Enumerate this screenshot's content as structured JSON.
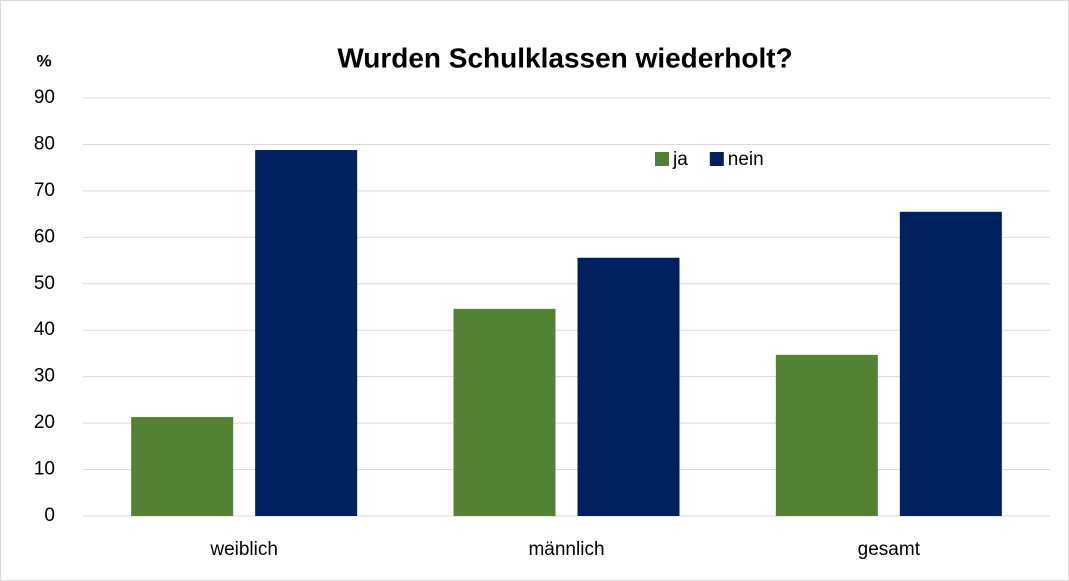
{
  "chart_data": {
    "type": "bar",
    "title": "Wurden Schulklassen wiederholt?",
    "y_label": "%",
    "categories": [
      "weiblich",
      "männlich",
      "gesamt"
    ],
    "series": [
      {
        "name": "ja",
        "color": "#548235",
        "values": [
          21.3,
          44.6,
          34.7
        ]
      },
      {
        "name": "nein",
        "color": "#002060",
        "values": [
          78.8,
          55.6,
          65.5
        ]
      }
    ],
    "ylim": [
      0,
      90
    ],
    "yticks": [
      0,
      10,
      20,
      30,
      40,
      50,
      60,
      70,
      80,
      90
    ],
    "grid": true
  }
}
